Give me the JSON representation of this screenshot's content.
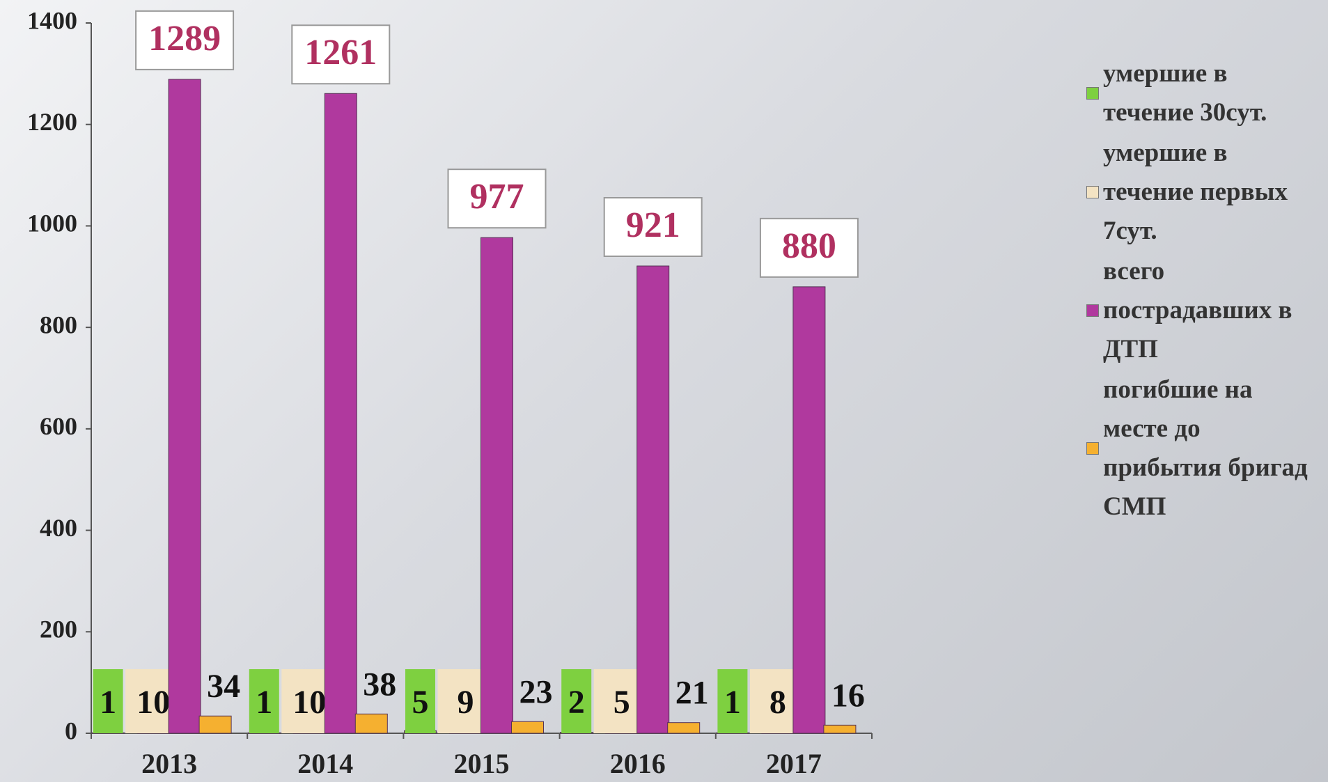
{
  "chart_data": {
    "type": "bar",
    "categories": [
      "2013",
      "2014",
      "2015",
      "2016",
      "2017"
    ],
    "series": [
      {
        "name": "умершие в течение 30сут.",
        "color": "#7ed040",
        "values": [
          1,
          1,
          5,
          2,
          1
        ]
      },
      {
        "name": "умершие в течение первых 7сут.",
        "color": "#f3e3c3",
        "values": [
          10,
          10,
          9,
          5,
          8
        ]
      },
      {
        "name": "всего пострадавших в ДТП",
        "color": "#b0399e",
        "values": [
          1289,
          1261,
          977,
          921,
          880
        ]
      },
      {
        "name": "погибшие на месте до прибытия бригад СМП",
        "color": "#f5b030",
        "values": [
          34,
          38,
          23,
          21,
          16
        ]
      }
    ],
    "ylim": [
      0,
      1400
    ],
    "yticks": [
      0,
      200,
      400,
      600,
      800,
      1000,
      1200,
      1400
    ],
    "legend": "right"
  }
}
